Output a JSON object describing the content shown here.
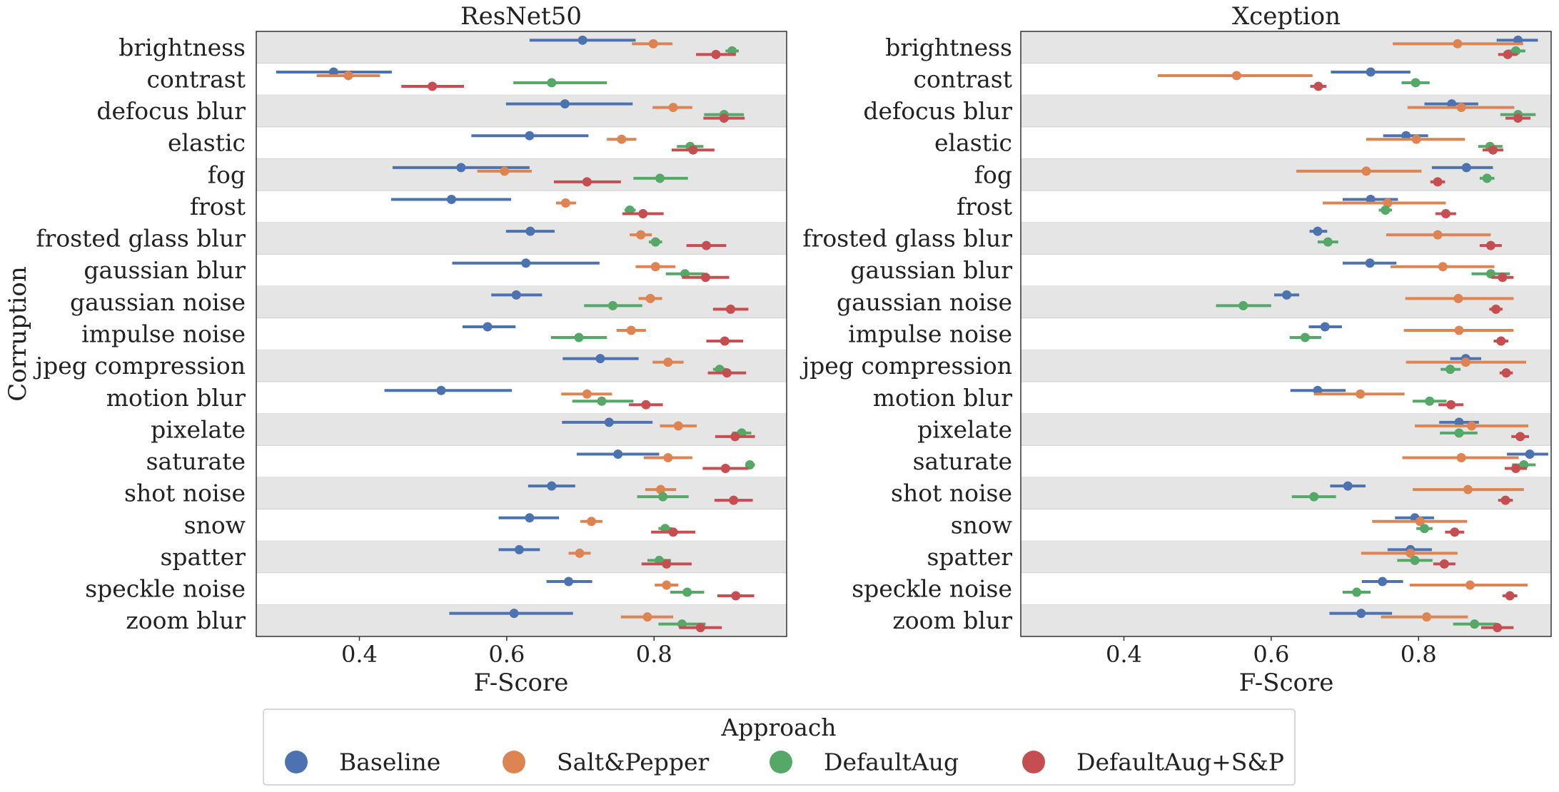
{
  "chart_data": [
    {
      "type": "pointplot",
      "title": "ResNet50",
      "xlabel": "F-Score",
      "ylabel": "Corruption",
      "xlim": [
        0.26,
        0.98
      ],
      "xticks": [
        0.4,
        0.6,
        0.8
      ],
      "xtick_labels": [
        "0.4",
        "0.6",
        "0.8"
      ],
      "orientation": "horizontal",
      "striped_rows": true,
      "categories": [
        "brightness",
        "contrast",
        "defocus blur",
        "elastic",
        "fog",
        "frost",
        "frosted glass blur",
        "gaussian blur",
        "gaussian noise",
        "impulse noise",
        "jpeg compression",
        "motion blur",
        "pixelate",
        "saturate",
        "shot noise",
        "snow",
        "spatter",
        "speckle noise",
        "zoom blur"
      ],
      "series": [
        {
          "name": "Baseline",
          "color": "#4C72B0",
          "values": [
            0.703,
            0.365,
            0.679,
            0.631,
            0.538,
            0.525,
            0.632,
            0.626,
            0.613,
            0.574,
            0.727,
            0.511,
            0.739,
            0.751,
            0.661,
            0.631,
            0.617,
            0.684,
            0.61
          ],
          "ci_low": [
            0.631,
            0.287,
            0.599,
            0.552,
            0.445,
            0.443,
            0.599,
            0.526,
            0.579,
            0.54,
            0.676,
            0.434,
            0.675,
            0.695,
            0.629,
            0.589,
            0.589,
            0.654,
            0.522
          ],
          "ci_high": [
            0.775,
            0.444,
            0.771,
            0.711,
            0.631,
            0.606,
            0.665,
            0.726,
            0.648,
            0.612,
            0.779,
            0.607,
            0.798,
            0.807,
            0.693,
            0.671,
            0.645,
            0.716,
            0.69
          ]
        },
        {
          "name": "Salt&Pepper",
          "color": "#DD8452",
          "values": [
            0.799,
            0.385,
            0.826,
            0.756,
            0.597,
            0.68,
            0.782,
            0.802,
            0.795,
            0.769,
            0.819,
            0.709,
            0.833,
            0.819,
            0.809,
            0.715,
            0.699,
            0.817,
            0.791
          ],
          "ci_low": [
            0.77,
            0.342,
            0.798,
            0.736,
            0.56,
            0.667,
            0.767,
            0.775,
            0.779,
            0.749,
            0.798,
            0.674,
            0.808,
            0.786,
            0.788,
            0.7,
            0.684,
            0.801,
            0.755
          ],
          "ci_high": [
            0.825,
            0.428,
            0.852,
            0.776,
            0.634,
            0.694,
            0.797,
            0.829,
            0.811,
            0.789,
            0.84,
            0.743,
            0.858,
            0.852,
            0.83,
            0.73,
            0.714,
            0.833,
            0.826
          ]
        },
        {
          "name": "DefaultAug",
          "color": "#55A868",
          "values": [
            0.906,
            0.661,
            0.895,
            0.849,
            0.808,
            0.767,
            0.802,
            0.842,
            0.744,
            0.698,
            0.889,
            0.729,
            0.919,
            0.93,
            0.812,
            0.815,
            0.807,
            0.845,
            0.838
          ],
          "ci_low": [
            0.897,
            0.609,
            0.868,
            0.831,
            0.772,
            0.76,
            0.793,
            0.816,
            0.705,
            0.66,
            0.88,
            0.689,
            0.906,
            0.925,
            0.777,
            0.806,
            0.791,
            0.822,
            0.806
          ],
          "ci_high": [
            0.915,
            0.736,
            0.922,
            0.867,
            0.846,
            0.775,
            0.811,
            0.868,
            0.784,
            0.736,
            0.898,
            0.772,
            0.932,
            0.937,
            0.847,
            0.824,
            0.823,
            0.868,
            0.87
          ]
        },
        {
          "name": "DefaultAug+S&P",
          "color": "#C44E52",
          "values": [
            0.884,
            0.499,
            0.895,
            0.853,
            0.709,
            0.785,
            0.871,
            0.87,
            0.904,
            0.896,
            0.899,
            0.789,
            0.91,
            0.897,
            0.908,
            0.826,
            0.817,
            0.911,
            0.863
          ],
          "ci_low": [
            0.857,
            0.457,
            0.867,
            0.824,
            0.664,
            0.757,
            0.844,
            0.838,
            0.88,
            0.871,
            0.873,
            0.766,
            0.883,
            0.866,
            0.882,
            0.796,
            0.783,
            0.886,
            0.834
          ],
          "ci_high": [
            0.911,
            0.542,
            0.923,
            0.882,
            0.755,
            0.813,
            0.898,
            0.902,
            0.928,
            0.921,
            0.925,
            0.812,
            0.937,
            0.928,
            0.934,
            0.856,
            0.851,
            0.936,
            0.892
          ]
        }
      ]
    },
    {
      "type": "pointplot",
      "title": "Xception",
      "xlabel": "F-Score",
      "ylabel": "",
      "xlim": [
        0.26,
        0.98
      ],
      "xticks": [
        0.4,
        0.6,
        0.8
      ],
      "xtick_labels": [
        "0.4",
        "0.6",
        "0.8"
      ],
      "orientation": "horizontal",
      "striped_rows": true,
      "categories": [
        "brightness",
        "contrast",
        "defocus blur",
        "elastic",
        "fog",
        "frost",
        "frosted glass blur",
        "gaussian blur",
        "gaussian noise",
        "impulse noise",
        "jpeg compression",
        "motion blur",
        "pixelate",
        "saturate",
        "shot noise",
        "snow",
        "spatter",
        "speckle noise",
        "zoom blur"
      ],
      "series": [
        {
          "name": "Baseline",
          "color": "#4C72B0",
          "values": [
            0.935,
            0.735,
            0.845,
            0.783,
            0.865,
            0.735,
            0.663,
            0.734,
            0.621,
            0.673,
            0.864,
            0.663,
            0.855,
            0.951,
            0.704,
            0.795,
            0.789,
            0.751,
            0.722
          ],
          "ci_low": [
            0.906,
            0.681,
            0.808,
            0.752,
            0.818,
            0.697,
            0.652,
            0.697,
            0.604,
            0.651,
            0.843,
            0.626,
            0.828,
            0.92,
            0.68,
            0.768,
            0.758,
            0.723,
            0.679
          ],
          "ci_high": [
            0.962,
            0.789,
            0.881,
            0.813,
            0.901,
            0.772,
            0.676,
            0.77,
            0.638,
            0.696,
            0.885,
            0.701,
            0.882,
            0.976,
            0.728,
            0.821,
            0.818,
            0.779,
            0.764
          ]
        },
        {
          "name": "Salt&Pepper",
          "color": "#DD8452",
          "values": [
            0.853,
            0.553,
            0.858,
            0.797,
            0.729,
            0.758,
            0.826,
            0.833,
            0.854,
            0.855,
            0.864,
            0.721,
            0.872,
            0.858,
            0.867,
            0.802,
            0.789,
            0.87,
            0.811
          ],
          "ci_low": [
            0.765,
            0.446,
            0.785,
            0.729,
            0.634,
            0.67,
            0.756,
            0.762,
            0.782,
            0.78,
            0.783,
            0.658,
            0.795,
            0.778,
            0.792,
            0.737,
            0.722,
            0.788,
            0.749
          ],
          "ci_high": [
            0.942,
            0.656,
            0.93,
            0.863,
            0.804,
            0.837,
            0.898,
            0.903,
            0.929,
            0.929,
            0.946,
            0.781,
            0.949,
            0.936,
            0.943,
            0.866,
            0.853,
            0.948,
            0.867
          ]
        },
        {
          "name": "DefaultAug",
          "color": "#55A868",
          "values": [
            0.932,
            0.796,
            0.935,
            0.897,
            0.893,
            0.755,
            0.677,
            0.898,
            0.562,
            0.646,
            0.843,
            0.815,
            0.855,
            0.943,
            0.658,
            0.808,
            0.795,
            0.716,
            0.876
          ],
          "ci_low": [
            0.92,
            0.777,
            0.911,
            0.881,
            0.883,
            0.746,
            0.663,
            0.872,
            0.525,
            0.625,
            0.83,
            0.792,
            0.829,
            0.927,
            0.628,
            0.797,
            0.771,
            0.697,
            0.847
          ],
          "ci_high": [
            0.945,
            0.815,
            0.959,
            0.914,
            0.903,
            0.764,
            0.691,
            0.924,
            0.6,
            0.668,
            0.857,
            0.838,
            0.88,
            0.959,
            0.688,
            0.819,
            0.819,
            0.735,
            0.906
          ]
        },
        {
          "name": "DefaultAug+S&P",
          "color": "#C44E52",
          "values": [
            0.921,
            0.664,
            0.935,
            0.901,
            0.826,
            0.837,
            0.898,
            0.914,
            0.905,
            0.912,
            0.919,
            0.844,
            0.938,
            0.932,
            0.918,
            0.849,
            0.835,
            0.924,
            0.907
          ],
          "ci_low": [
            0.908,
            0.653,
            0.918,
            0.887,
            0.816,
            0.823,
            0.883,
            0.899,
            0.896,
            0.902,
            0.91,
            0.827,
            0.926,
            0.917,
            0.908,
            0.836,
            0.82,
            0.914,
            0.885
          ],
          "ci_high": [
            0.934,
            0.675,
            0.952,
            0.915,
            0.836,
            0.851,
            0.913,
            0.929,
            0.914,
            0.922,
            0.928,
            0.861,
            0.95,
            0.947,
            0.928,
            0.862,
            0.85,
            0.934,
            0.929
          ]
        }
      ]
    }
  ],
  "legend": {
    "title": "Approach",
    "placement": "bottom-center",
    "entries": [
      {
        "label": "Baseline",
        "color": "#4C72B0"
      },
      {
        "label": "Salt&Pepper",
        "color": "#DD8452"
      },
      {
        "label": "DefaultAug",
        "color": "#55A868"
      },
      {
        "label": "DefaultAug+S&P",
        "color": "#C44E52"
      }
    ]
  },
  "colors": {
    "stripe": "#e5e5e5",
    "frame": "#333333",
    "background": "#ffffff"
  }
}
